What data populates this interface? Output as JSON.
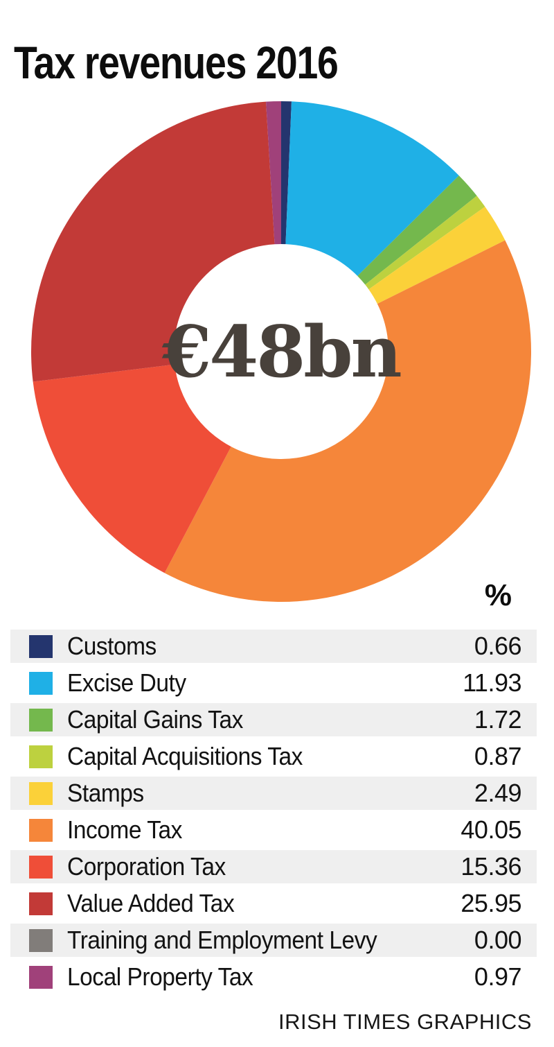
{
  "title": "Tax revenues 2016",
  "center_label": "€48bn",
  "column_header": "%",
  "footer_credit": "IRISH TIMES GRAPHICS",
  "colors": {
    "background": "#ffffff",
    "title_text": "#0d0d0d",
    "center_text": "#48413b",
    "legend_alt_row_bg": "#efefef",
    "legend_text": "#121212"
  },
  "chart_data": {
    "type": "pie",
    "donut": true,
    "title": "Tax revenues 2016",
    "center_label": "€48bn",
    "unit": "%",
    "total_label": "€48bn",
    "start_angle_deg": 0,
    "direction": "clockwise",
    "legend_position": "below",
    "slices": [
      {
        "label": "Customs",
        "value": "0.66",
        "color": "#24356e"
      },
      {
        "label": "Excise Duty",
        "value": "11.93",
        "color": "#1fb0e6"
      },
      {
        "label": "Capital Gains Tax",
        "value": "1.72",
        "color": "#74b84d"
      },
      {
        "label": "Capital Acquisitions Tax",
        "value": "0.87",
        "color": "#bdd13f"
      },
      {
        "label": "Stamps",
        "value": "2.49",
        "color": "#fbd139"
      },
      {
        "label": "Income Tax",
        "value": "40.05",
        "color": "#f5863a"
      },
      {
        "label": "Corporation Tax",
        "value": "15.36",
        "color": "#ef4e38"
      },
      {
        "label": "Value Added Tax",
        "value": "25.95",
        "color": "#c23a37"
      },
      {
        "label": "Training and Employment Levy",
        "value": "0.00",
        "color": "#817d7a"
      },
      {
        "label": "Local Property Tax",
        "value": "0.97",
        "color": "#a0417a"
      }
    ]
  }
}
